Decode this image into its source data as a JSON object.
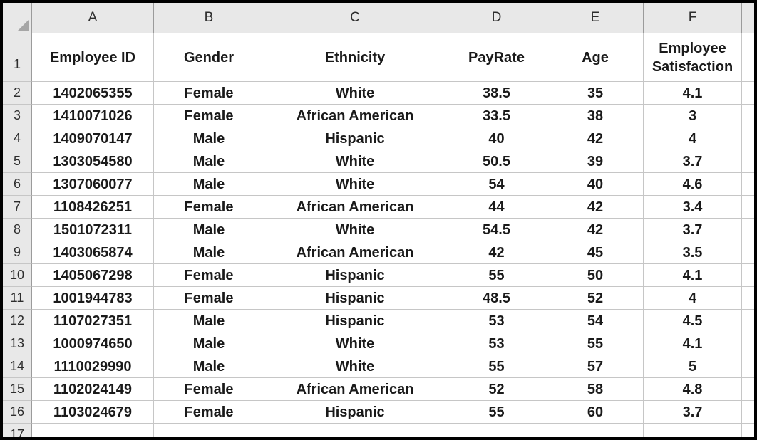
{
  "app": {
    "title": "Employee data spreadsheet"
  },
  "colors": {
    "frame_border": "#000000",
    "header_bg": "#e8e8e8",
    "header_border": "#9b9b9b",
    "gridline": "#c6c6c6",
    "header_text": "#2d2d2d",
    "cell_text": "#1a1a1a",
    "triangle": "#a6a6a6"
  },
  "sheet": {
    "column_letters": [
      "A",
      "B",
      "C",
      "D",
      "E",
      "F",
      ""
    ],
    "header_row": {
      "number": "1",
      "labels": [
        "Employee ID",
        "Gender",
        "Ethnicity",
        "PayRate",
        "Age",
        "Employee Satisfaction",
        ""
      ]
    },
    "rows": [
      {
        "number": "2",
        "cells": [
          "1402065355",
          "Female",
          "White",
          "38.5",
          "35",
          "4.1",
          ""
        ]
      },
      {
        "number": "3",
        "cells": [
          "1410071026",
          "Female",
          "African American",
          "33.5",
          "38",
          "3",
          ""
        ]
      },
      {
        "number": "4",
        "cells": [
          "1409070147",
          "Male",
          "Hispanic",
          "40",
          "42",
          "4",
          ""
        ]
      },
      {
        "number": "5",
        "cells": [
          "1303054580",
          "Male",
          "White",
          "50.5",
          "39",
          "3.7",
          ""
        ]
      },
      {
        "number": "6",
        "cells": [
          "1307060077",
          "Male",
          "White",
          "54",
          "40",
          "4.6",
          ""
        ]
      },
      {
        "number": "7",
        "cells": [
          "1108426251",
          "Female",
          "African American",
          "44",
          "42",
          "3.4",
          ""
        ]
      },
      {
        "number": "8",
        "cells": [
          "1501072311",
          "Male",
          "White",
          "54.5",
          "42",
          "3.7",
          ""
        ]
      },
      {
        "number": "9",
        "cells": [
          "1403065874",
          "Male",
          "African American",
          "42",
          "45",
          "3.5",
          ""
        ]
      },
      {
        "number": "10",
        "cells": [
          "1405067298",
          "Female",
          "Hispanic",
          "55",
          "50",
          "4.1",
          ""
        ]
      },
      {
        "number": "11",
        "cells": [
          "1001944783",
          "Female",
          "Hispanic",
          "48.5",
          "52",
          "4",
          ""
        ]
      },
      {
        "number": "12",
        "cells": [
          "1107027351",
          "Male",
          "Hispanic",
          "53",
          "54",
          "4.5",
          ""
        ]
      },
      {
        "number": "13",
        "cells": [
          "1000974650",
          "Male",
          "White",
          "53",
          "55",
          "4.1",
          ""
        ]
      },
      {
        "number": "14",
        "cells": [
          "1110029990",
          "Male",
          "White",
          "55",
          "57",
          "5",
          ""
        ]
      },
      {
        "number": "15",
        "cells": [
          "1102024149",
          "Female",
          "African American",
          "52",
          "58",
          "4.8",
          ""
        ]
      },
      {
        "number": "16",
        "cells": [
          "1103024679",
          "Female",
          "Hispanic",
          "55",
          "60",
          "3.7",
          ""
        ]
      },
      {
        "number": "17",
        "cells": [
          "",
          "",
          "",
          "",
          "",
          "",
          ""
        ]
      }
    ]
  }
}
